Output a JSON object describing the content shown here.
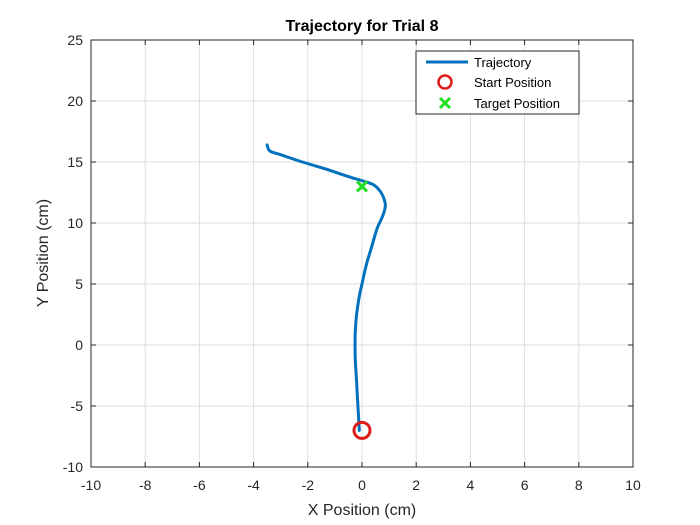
{
  "chart_data": {
    "type": "line",
    "title": "Trajectory for Trial 8",
    "xlabel": "X Position (cm)",
    "ylabel": "Y Position (cm)",
    "xlim": [
      -10,
      10
    ],
    "ylim": [
      -10,
      25
    ],
    "xticks": [
      -10,
      -8,
      -6,
      -4,
      -2,
      0,
      2,
      4,
      6,
      8,
      10
    ],
    "yticks": [
      -10,
      -5,
      0,
      5,
      10,
      15,
      20,
      25
    ],
    "grid": true,
    "legend_position": "top-right",
    "legend": [
      "Trajectory",
      "Start Position",
      "Target Position"
    ],
    "series": [
      {
        "name": "Trajectory",
        "color": "#0072BD",
        "x": [
          -0.1,
          -0.15,
          -0.2,
          -0.25,
          -0.25,
          -0.2,
          -0.1,
          0.0,
          0.15,
          0.35,
          0.55,
          0.75,
          0.85,
          0.85,
          0.7,
          0.45,
          0.1,
          -0.5,
          -1.3,
          -2.2,
          -3.0,
          -3.4,
          -3.5
        ],
        "y": [
          -7.0,
          -5.0,
          -3.0,
          -1.0,
          1.0,
          2.5,
          4.0,
          5.0,
          6.5,
          8.0,
          9.5,
          10.5,
          11.2,
          11.7,
          12.5,
          13.1,
          13.4,
          13.8,
          14.4,
          15.0,
          15.6,
          15.9,
          16.4
        ]
      }
    ],
    "markers": [
      {
        "name": "Start Position",
        "symbol": "circle",
        "color": "#E01B1B",
        "x": 0,
        "y": -7
      },
      {
        "name": "Target Position",
        "symbol": "x",
        "color": "#22DD22",
        "x": 0,
        "y": 13
      }
    ]
  }
}
